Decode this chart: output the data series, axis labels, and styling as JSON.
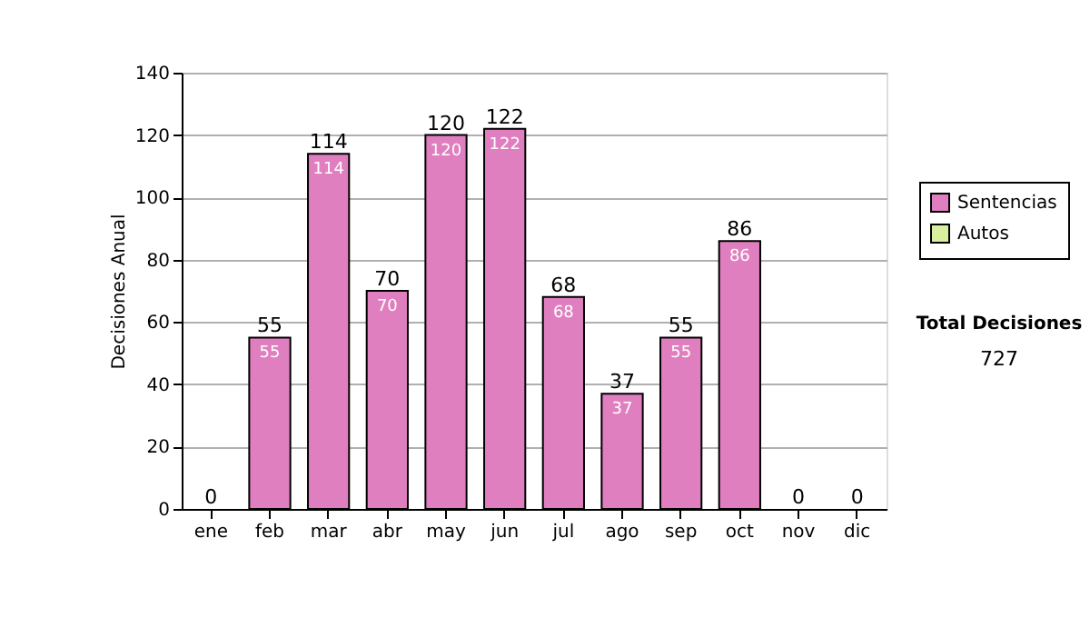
{
  "chart_data": {
    "type": "bar",
    "stacked": true,
    "ylabel": "Decisiones Anual",
    "categories": [
      "ene",
      "feb",
      "mar",
      "abr",
      "may",
      "jun",
      "jul",
      "ago",
      "sep",
      "oct",
      "nov",
      "dic"
    ],
    "series": [
      {
        "name": "Sentencias",
        "color": "#e07fbf",
        "values": [
          0,
          55,
          114,
          70,
          120,
          122,
          68,
          37,
          55,
          86,
          0,
          0
        ],
        "value_labels": [
          null,
          "55",
          "114",
          "70",
          "120",
          "122",
          "68",
          "37",
          "55",
          "86",
          null,
          null
        ]
      },
      {
        "name": "Autos",
        "color": "#d8efa0",
        "values": [
          0,
          0,
          0,
          0,
          0,
          0,
          0,
          0,
          0,
          0,
          0,
          0
        ]
      }
    ],
    "totals": [
      "0",
      "55",
      "114",
      "70",
      "120",
      "122",
      "68",
      "37",
      "55",
      "86",
      "0",
      "0"
    ],
    "ylim": [
      0,
      140
    ],
    "yticks": [
      0,
      20,
      40,
      60,
      80,
      100,
      120,
      140
    ],
    "grid": "y",
    "legend": "right",
    "annotations": [
      "Total Decisiones",
      "727"
    ]
  }
}
